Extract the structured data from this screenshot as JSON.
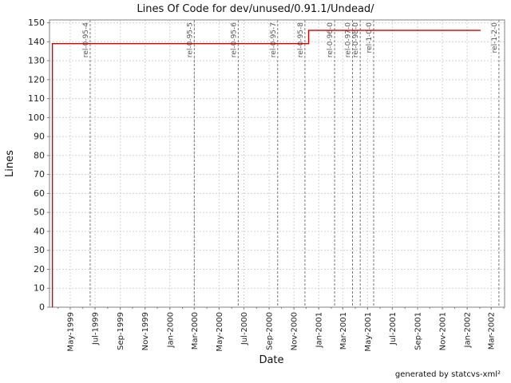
{
  "footer": "generated by statcvs-xml²",
  "chart_data": {
    "type": "line",
    "line_style": "step",
    "title": "Lines Of Code for dev/unused/0.91.1/Undead/",
    "xlabel": "Date",
    "ylabel": "Lines",
    "x_range": [
      "1999-03-11",
      "2002-04-03"
    ],
    "y_range": [
      0,
      150
    ],
    "y_tick_step": 10,
    "grid": true,
    "legend": "none",
    "x_ticks": [
      {
        "date": "1999-05-01",
        "label": "May-1999"
      },
      {
        "date": "1999-07-01",
        "label": "Jul-1999"
      },
      {
        "date": "1999-09-01",
        "label": "Sep-1999"
      },
      {
        "date": "1999-11-01",
        "label": "Nov-1999"
      },
      {
        "date": "2000-01-01",
        "label": "Jan-2000"
      },
      {
        "date": "2000-03-01",
        "label": "Mar-2000"
      },
      {
        "date": "2000-05-01",
        "label": "May-2000"
      },
      {
        "date": "2000-07-01",
        "label": "Jul-2000"
      },
      {
        "date": "2000-09-01",
        "label": "Sep-2000"
      },
      {
        "date": "2000-11-01",
        "label": "Nov-2000"
      },
      {
        "date": "2001-01-01",
        "label": "Jan-2001"
      },
      {
        "date": "2001-03-01",
        "label": "Mar-2001"
      },
      {
        "date": "2001-05-01",
        "label": "May-2001"
      },
      {
        "date": "2001-07-01",
        "label": "Jul-2001"
      },
      {
        "date": "2001-09-01",
        "label": "Sep-2001"
      },
      {
        "date": "2001-11-01",
        "label": "Nov-2001"
      },
      {
        "date": "2002-01-01",
        "label": "Jan-2002"
      },
      {
        "date": "2002-03-01",
        "label": "Mar-2002"
      }
    ],
    "series": [
      {
        "name": "Lines of Code",
        "color": "#d40000",
        "points": [
          [
            "1999-03-18",
            0
          ],
          [
            "1999-03-18",
            139
          ],
          [
            "2000-12-07",
            139
          ],
          [
            "2000-12-07",
            146
          ],
          [
            "2002-02-03",
            146
          ]
        ]
      }
    ],
    "tags": [
      {
        "label": "rel-0-95-4",
        "date": "1999-06-19"
      },
      {
        "label": "rel-0-95-5",
        "date": "2000-03-01"
      },
      {
        "label": "rel-0-95-6",
        "date": "2000-06-17"
      },
      {
        "label": "rel-0-95-7",
        "date": "2000-09-22"
      },
      {
        "label": "rel-0-95-8",
        "date": "2000-11-28"
      },
      {
        "label": "rel-0-96-0",
        "date": "2001-02-09"
      },
      {
        "label": "rel-0-97-0",
        "date": "2001-03-25"
      },
      {
        "label": "rel-0-98-0",
        "date": "2001-04-13"
      },
      {
        "label": "rel-1-0-0",
        "date": "2001-05-16"
      },
      {
        "label": "rel-1-2-0",
        "date": "2002-03-20"
      }
    ],
    "colors": {
      "series": "#d40000",
      "grid": "#d4d4d4",
      "tag_line": "#787878",
      "tag_label": "#555555",
      "border": "#808080",
      "background": "#ffffff"
    }
  }
}
